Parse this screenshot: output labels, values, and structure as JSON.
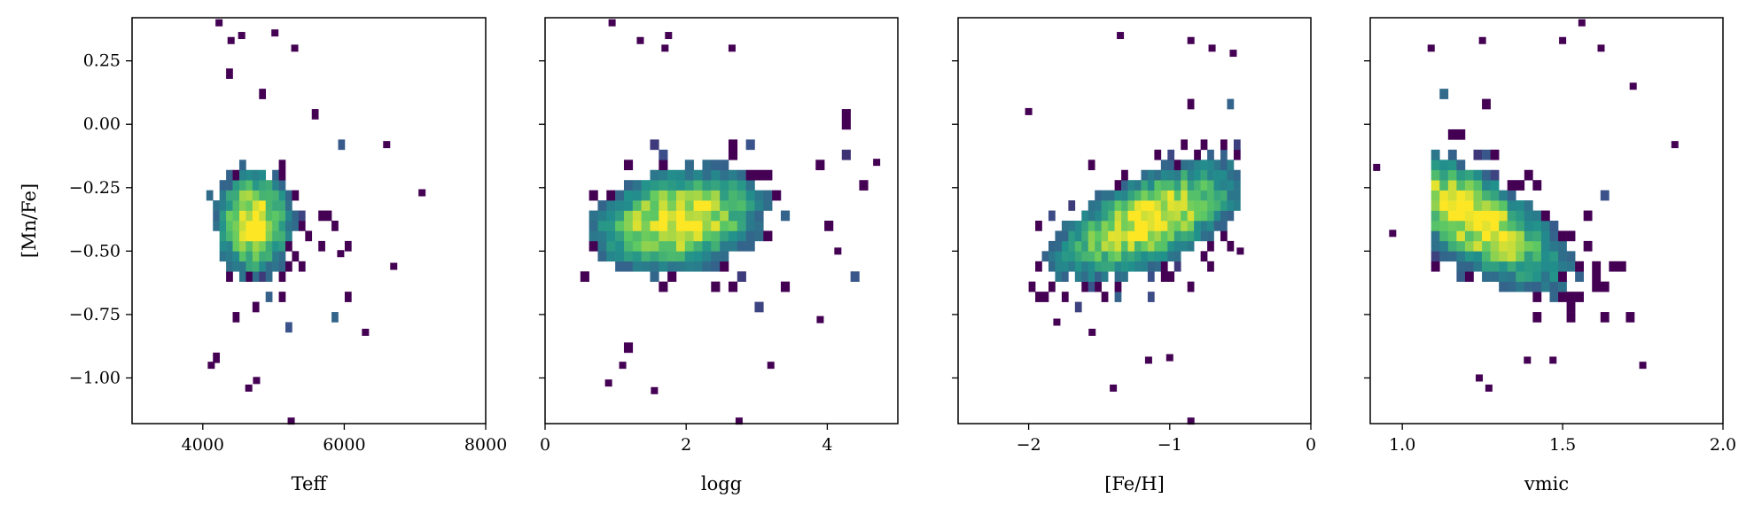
{
  "chart_data": {
    "type": "heatmap",
    "colors": {
      "colormap": "viridis",
      "scale": [
        "#440154",
        "#3b528b",
        "#21918c",
        "#5ec962",
        "#fde725"
      ],
      "frame": "#000000",
      "background": "#ffffff"
    },
    "grid": false,
    "shared_y": true,
    "ylabel": "[Mn/Fe]",
    "ylim": [
      -1.18,
      0.42
    ],
    "yticks": [
      0.25,
      0.0,
      -0.25,
      -0.5,
      -0.75,
      -1.0
    ],
    "ytick_labels": [
      "0.25",
      "0.00",
      "−0.25",
      "−0.50",
      "−0.75",
      "−1.00"
    ],
    "panels": [
      {
        "xlabel": "Teff",
        "xlim": [
          3000,
          8000
        ],
        "xticks": [
          4000,
          6000,
          8000
        ],
        "xtick_labels": [
          "4000",
          "6000",
          "8000"
        ],
        "x_range": [
          4050,
          6100
        ],
        "x_center": 4720,
        "x_spread": 330,
        "y_center": -0.39,
        "y_spread": 0.13,
        "tilt": 0,
        "nbins_x": 22,
        "nbins_y": 40,
        "outliers": [
          [
            4230,
            0.4
          ],
          [
            4400,
            0.33
          ],
          [
            4550,
            0.35
          ],
          [
            5300,
            0.3
          ],
          [
            5020,
            0.36
          ],
          [
            6600,
            -0.08
          ],
          [
            7100,
            -0.27
          ],
          [
            6700,
            -0.56
          ],
          [
            5250,
            -1.17
          ],
          [
            4650,
            -1.04
          ],
          [
            4120,
            -0.95
          ],
          [
            4760,
            -1.01
          ],
          [
            6300,
            -0.82
          ],
          [
            5950,
            -0.51
          ]
        ]
      },
      {
        "xlabel": "logg",
        "xlim": [
          0,
          5
        ],
        "xticks": [
          0,
          2,
          4
        ],
        "xtick_labels": [
          "0",
          "2",
          "4"
        ],
        "x_range": [
          0.5,
          4.7
        ],
        "x_center": 1.9,
        "x_spread": 0.75,
        "y_center": -0.38,
        "y_spread": 0.12,
        "tilt": 0.03,
        "nbins_x": 34,
        "nbins_y": 40,
        "outliers": [
          [
            0.95,
            0.4
          ],
          [
            1.35,
            0.33
          ],
          [
            1.75,
            0.35
          ],
          [
            1.7,
            0.3
          ],
          [
            2.65,
            0.3
          ],
          [
            1.1,
            -0.95
          ],
          [
            0.9,
            -1.02
          ],
          [
            1.55,
            -1.05
          ],
          [
            2.75,
            -1.17
          ],
          [
            3.2,
            -0.95
          ],
          [
            4.15,
            -0.5
          ],
          [
            3.9,
            -0.77
          ],
          [
            4.7,
            -0.15
          ]
        ]
      },
      {
        "xlabel": "[Fe/H]",
        "xlim": [
          -2.5,
          0
        ],
        "xticks": [
          -2,
          -1,
          0
        ],
        "xtick_labels": [
          "−2",
          "−1",
          "0"
        ],
        "x_range": [
          -2.0,
          -0.5
        ],
        "x_center": -1.15,
        "x_spread": 0.42,
        "y_center": -0.38,
        "y_spread": 0.11,
        "tilt": 0.09,
        "nbins_x": 32,
        "nbins_y": 40,
        "outliers": [
          [
            -1.35,
            0.35
          ],
          [
            -0.7,
            0.3
          ],
          [
            -0.85,
            0.33
          ],
          [
            -0.55,
            0.28
          ],
          [
            -2.0,
            0.05
          ],
          [
            -1.55,
            -0.82
          ],
          [
            -1.4,
            -1.04
          ],
          [
            -1.15,
            -0.93
          ],
          [
            -1.0,
            -0.92
          ],
          [
            -0.85,
            -1.17
          ],
          [
            -1.8,
            -0.78
          ],
          [
            -0.5,
            -0.5
          ]
        ]
      },
      {
        "xlabel": "vmic",
        "xlim": [
          0.9,
          2.0
        ],
        "xticks": [
          1.0,
          1.5,
          2.0
        ],
        "xtick_labels": [
          "1.0",
          "1.5",
          "2.0"
        ],
        "x_range": [
          1.09,
          1.75
        ],
        "x_center": 1.22,
        "x_spread": 0.18,
        "y_center": -0.37,
        "y_spread": 0.12,
        "tilt": -0.12,
        "nbins_x": 25,
        "nbins_y": 40,
        "outliers": [
          [
            1.56,
            0.4
          ],
          [
            1.09,
            0.3
          ],
          [
            1.25,
            0.33
          ],
          [
            1.5,
            0.33
          ],
          [
            1.62,
            0.3
          ],
          [
            1.72,
            0.15
          ],
          [
            1.85,
            -0.08
          ],
          [
            0.92,
            -0.17
          ],
          [
            0.97,
            -0.43
          ],
          [
            1.24,
            -1.0
          ],
          [
            1.27,
            -1.04
          ],
          [
            1.39,
            -0.93
          ],
          [
            1.47,
            -0.93
          ],
          [
            1.75,
            -0.95
          ]
        ]
      }
    ]
  }
}
